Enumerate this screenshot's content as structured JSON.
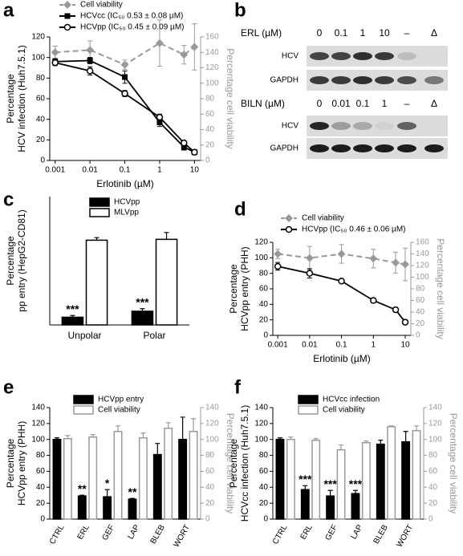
{
  "chart_data": [
    {
      "type": "line",
      "panel": "a",
      "x_label": "Erlotinib (µM)",
      "y_label": [
        "Percentage",
        "HCV infection (Huh7.5.1)"
      ],
      "y2_label": "Percentage cell viability",
      "xscale": "log",
      "xlim": [
        0.0007,
        15
      ],
      "xticks": [
        0.001,
        0.01,
        0.1,
        1,
        10
      ],
      "ylim": [
        0,
        120
      ],
      "yticks": [
        0,
        20,
        40,
        60,
        80,
        100,
        120
      ],
      "y2lim": [
        0,
        160
      ],
      "y2ticks": [
        0,
        20,
        40,
        60,
        80,
        100,
        120,
        140,
        160
      ],
      "y2_color": "#999999",
      "legend": "upper left",
      "x": [
        0.001,
        0.01,
        0.1,
        1,
        5,
        10
      ],
      "series": [
        {
          "name": "Cell viability",
          "color": "#999999",
          "marker": "diamond",
          "dash": true,
          "axis": "y2",
          "values": [
            140,
            143,
            124,
            152,
            137,
            147
          ],
          "errors": [
            8,
            12,
            6,
            30,
            12,
            30
          ]
        },
        {
          "name": "HCVcc (IC₅₀ 0.53 ± 0.08 µM)",
          "color": "#000000",
          "marker": "square",
          "values": [
            96,
            97,
            81,
            37,
            13,
            8
          ],
          "errors": [
            3,
            3,
            6,
            4,
            3,
            2
          ]
        },
        {
          "name": "HCVpp (IC₅₀ 0.45 ± 0.09 µM)",
          "color": "#000000",
          "marker": "circle-open",
          "values": [
            95,
            87,
            65,
            42,
            17,
            8
          ],
          "errors": [
            3,
            4,
            3,
            3,
            2,
            2
          ]
        }
      ]
    },
    {
      "type": "bar",
      "panel": "c",
      "y_label": [
        "Percentage",
        "pp entry (HepG2-CD81)"
      ],
      "ylim": [
        0,
        150
      ],
      "legend": "upper left",
      "categories": [
        "Unpolar",
        "Polar"
      ],
      "series": [
        {
          "name": "HCVpp",
          "color": "#000000",
          "edgecolor": "#000000",
          "values": [
            9,
            16
          ],
          "errors": [
            2,
            3
          ],
          "significance": [
            "***",
            "***"
          ]
        },
        {
          "name": "MLVpp",
          "color": "#ffffff",
          "edgecolor": "#000000",
          "values": [
            99,
            100
          ],
          "errors": [
            3,
            8
          ]
        }
      ]
    },
    {
      "type": "line",
      "panel": "d",
      "x_label": "Erlotinib (µM)",
      "y_label": [
        "Percentage",
        "HCVpp entry (PHH)"
      ],
      "y2_label": "Percentage cell viability",
      "xscale": "log",
      "xlim": [
        0.0007,
        15
      ],
      "xticks": [
        0.001,
        0.01,
        0.1,
        1,
        10
      ],
      "ylim": [
        0,
        120
      ],
      "yticks": [
        0,
        20,
        40,
        60,
        80,
        100,
        120
      ],
      "y2lim": [
        0,
        160
      ],
      "y2ticks": [
        0,
        20,
        40,
        60,
        80,
        100,
        120,
        140,
        160
      ],
      "y2_color": "#999999",
      "legend": "upper left",
      "x": [
        0.001,
        0.01,
        0.1,
        1,
        5,
        10
      ],
      "series": [
        {
          "name": "Cell viability",
          "color": "#999999",
          "marker": "diamond",
          "dash": true,
          "axis": "y2",
          "values": [
            140,
            133,
            140,
            132,
            125,
            122
          ],
          "errors": [
            8,
            20,
            16,
            16,
            18,
            28
          ]
        },
        {
          "name": "HCVpp (IC₅₀ 0.46 ± 0.06 µM)",
          "color": "#000000",
          "marker": "circle-open",
          "values": [
            89,
            80,
            70,
            45,
            33,
            17
          ],
          "errors": [
            5,
            6,
            2,
            3,
            3,
            1
          ]
        }
      ]
    },
    {
      "type": "bar",
      "panel": "e",
      "y_label": [
        "Percentage",
        "HCVpp entry (PHH)"
      ],
      "y2_label": "Percentage cell viability",
      "ylim": [
        0,
        140
      ],
      "yticks": [
        0,
        20,
        40,
        60,
        80,
        100,
        120,
        140
      ],
      "y2lim": [
        0,
        140
      ],
      "y2ticks": [
        0,
        20,
        40,
        60,
        80,
        100,
        120,
        140
      ],
      "y2_color": "#999999",
      "legend": "upper left",
      "xtick_rotation": -60,
      "categories": [
        "CTRL",
        "ERL",
        "GEF",
        "LAP",
        "BLEB",
        "WORT"
      ],
      "series": [
        {
          "name": "HCVpp entry",
          "color": "#000000",
          "edgecolor": "#000000",
          "values": [
            100,
            29,
            28,
            25,
            81,
            100
          ],
          "errors": [
            2,
            1,
            9,
            1,
            14,
            28
          ],
          "significance": [
            null,
            "**",
            "*",
            "**",
            null,
            null
          ]
        },
        {
          "name": "Cell viability",
          "color": "#ffffff",
          "edgecolor": "#999999",
          "axis": "y2",
          "values": [
            101,
            103,
            110,
            102,
            114,
            110
          ],
          "errors": [
            4,
            3,
            7,
            6,
            7,
            16
          ]
        }
      ]
    },
    {
      "type": "bar",
      "panel": "f",
      "y_label": [
        "Percentage",
        "HCVcc infection (Huh7.5.1)"
      ],
      "y2_label": "Percentage cell viability",
      "ylim": [
        0,
        140
      ],
      "yticks": [
        0,
        20,
        40,
        60,
        80,
        100,
        120,
        140
      ],
      "y2lim": [
        0,
        140
      ],
      "y2ticks": [
        0,
        20,
        40,
        60,
        80,
        100,
        120,
        140
      ],
      "y2_color": "#999999",
      "legend": "upper left",
      "xtick_rotation": -60,
      "categories": [
        "CTRL",
        "ERL",
        "GEF",
        "LAP",
        "BLEB",
        "WORT"
      ],
      "series": [
        {
          "name": "HCVcc infection",
          "color": "#000000",
          "edgecolor": "#000000",
          "values": [
            100,
            37,
            29,
            32,
            94,
            97
          ],
          "errors": [
            2,
            5,
            7,
            4,
            5,
            13
          ],
          "significance": [
            null,
            "***",
            "***",
            "***",
            null,
            null
          ]
        },
        {
          "name": "Cell viability",
          "color": "#ffffff",
          "edgecolor": "#999999",
          "axis": "y2",
          "values": [
            100,
            99,
            87,
            96,
            116,
            111
          ],
          "errors": [
            3,
            2,
            6,
            2,
            1,
            6
          ]
        }
      ]
    }
  ],
  "blot": {
    "panel": "b",
    "top": {
      "label": "ERL (µM)",
      "lanes": [
        "0",
        "0.1",
        "1",
        "10",
        "–",
        "Δ"
      ],
      "rows": [
        "HCV",
        "GAPDH"
      ]
    },
    "bottom": {
      "label": "BILN (µM)",
      "lanes": [
        "0",
        "0.01",
        "0.1",
        "1",
        "–",
        "Δ"
      ],
      "rows": [
        "HCV",
        "GAPDH"
      ]
    }
  }
}
